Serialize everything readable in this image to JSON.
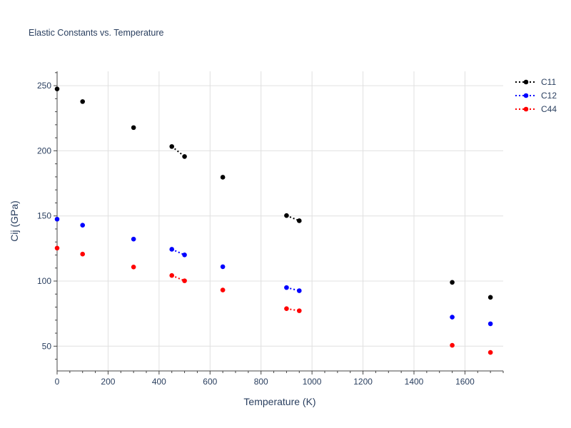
{
  "chart_data": {
    "type": "scatter",
    "title": "Elastic Constants vs. Temperature",
    "xlabel": "Temperature (K)",
    "ylabel": "Cij (GPa)",
    "xlim": [
      0,
      1750
    ],
    "ylim": [
      31,
      261
    ],
    "xticks": [
      0,
      200,
      400,
      600,
      800,
      1000,
      1200,
      1400,
      1600
    ],
    "yticks": [
      50,
      100,
      150,
      200,
      250
    ],
    "grid": true,
    "legend_position": "top-right",
    "series": [
      {
        "name": "C11",
        "color": "#000000",
        "x": [
          0,
          100,
          300,
          450,
          500,
          650,
          900,
          950,
          1550,
          1700
        ],
        "y": [
          247.5,
          237.8,
          217.8,
          203.3,
          195.6,
          179.7,
          150.3,
          146.3,
          99.0,
          87.5
        ]
      },
      {
        "name": "C12",
        "color": "#0000ff",
        "x": [
          0,
          100,
          300,
          450,
          500,
          650,
          900,
          950,
          1550,
          1700
        ],
        "y": [
          147.5,
          142.9,
          132.2,
          124.4,
          120.1,
          111.0,
          95.0,
          92.6,
          72.3,
          67.2
        ]
      },
      {
        "name": "C44",
        "color": "#ff0000",
        "x": [
          0,
          100,
          300,
          450,
          500,
          650,
          900,
          950,
          1550,
          1700
        ],
        "y": [
          125.3,
          120.7,
          110.8,
          104.3,
          100.2,
          93.1,
          78.8,
          77.2,
          50.7,
          45.2
        ]
      }
    ],
    "connected_segments": [
      [
        3,
        4
      ],
      [
        6,
        7
      ]
    ]
  }
}
